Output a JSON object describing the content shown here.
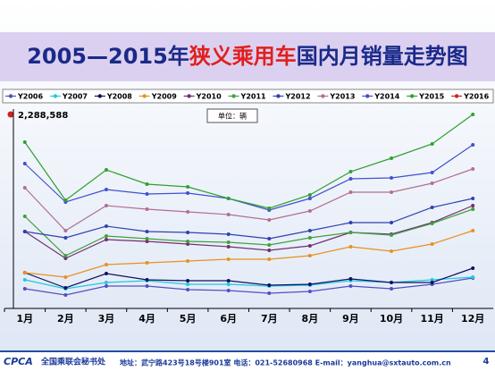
{
  "chart_data": {
    "type": "line",
    "title_parts": [
      "2005—2015年",
      "狭义乘用车",
      "国内月销量走势图"
    ],
    "unit_label": "单位：辆",
    "annotation": "2,288,588",
    "categories": [
      "1月",
      "2月",
      "3月",
      "4月",
      "5月",
      "6月",
      "7月",
      "8月",
      "9月",
      "10月",
      "11月",
      "12月"
    ],
    "ylim": [
      0,
      2230000
    ],
    "series": [
      {
        "name": "Y2006",
        "color": "#5050c0",
        "values": [
          220000,
          150000,
          250000,
          250000,
          210000,
          200000,
          170000,
          190000,
          250000,
          220000,
          270000,
          340000
        ]
      },
      {
        "name": "Y2007",
        "color": "#20c8e0",
        "values": [
          320000,
          220000,
          290000,
          310000,
          270000,
          270000,
          250000,
          260000,
          310000,
          290000,
          320000,
          350000
        ]
      },
      {
        "name": "Y2008",
        "color": "#101060",
        "values": [
          400000,
          230000,
          390000,
          320000,
          310000,
          310000,
          260000,
          270000,
          330000,
          290000,
          290000,
          450000
        ]
      },
      {
        "name": "Y2009",
        "color": "#e89020",
        "values": [
          400000,
          350000,
          490000,
          510000,
          530000,
          550000,
          550000,
          590000,
          690000,
          640000,
          720000,
          870000
        ]
      },
      {
        "name": "Y2010",
        "color": "#703070",
        "values": [
          860000,
          560000,
          770000,
          750000,
          720000,
          690000,
          650000,
          700000,
          850000,
          830000,
          960000,
          1150000
        ]
      },
      {
        "name": "Y2011",
        "color": "#40a040",
        "values": [
          1030000,
          590000,
          810000,
          780000,
          750000,
          740000,
          710000,
          790000,
          850000,
          820000,
          950000,
          1110000
        ]
      },
      {
        "name": "Y2012",
        "color": "#3040b0",
        "values": [
          860000,
          790000,
          920000,
          860000,
          850000,
          830000,
          780000,
          870000,
          960000,
          960000,
          1130000,
          1230000
        ]
      },
      {
        "name": "Y2013",
        "color": "#b07090",
        "values": [
          1350000,
          870000,
          1150000,
          1110000,
          1080000,
          1050000,
          990000,
          1090000,
          1300000,
          1300000,
          1400000,
          1560000
        ]
      },
      {
        "name": "Y2014",
        "color": "#4050d0",
        "values": [
          1620000,
          1190000,
          1330000,
          1280000,
          1290000,
          1230000,
          1100000,
          1230000,
          1450000,
          1460000,
          1520000,
          1830000
        ]
      },
      {
        "name": "Y2015",
        "color": "#30a030",
        "values": [
          1860000,
          1210000,
          1550000,
          1390000,
          1360000,
          1230000,
          1120000,
          1270000,
          1530000,
          1680000,
          1840000,
          2170000
        ]
      },
      {
        "name": "Y2016",
        "color": "#d02020",
        "values": [
          null,
          null,
          null,
          null,
          null,
          null,
          null,
          null,
          null,
          null,
          null,
          null
        ]
      }
    ]
  },
  "footer": {
    "logo": "CPCA",
    "org": "全国乘联会秘书处",
    "address": "地址：武宁路423号18号楼901室  电话：021-52680968  E-mail：yanghua@sxtauto.com.cn",
    "page": "4"
  }
}
